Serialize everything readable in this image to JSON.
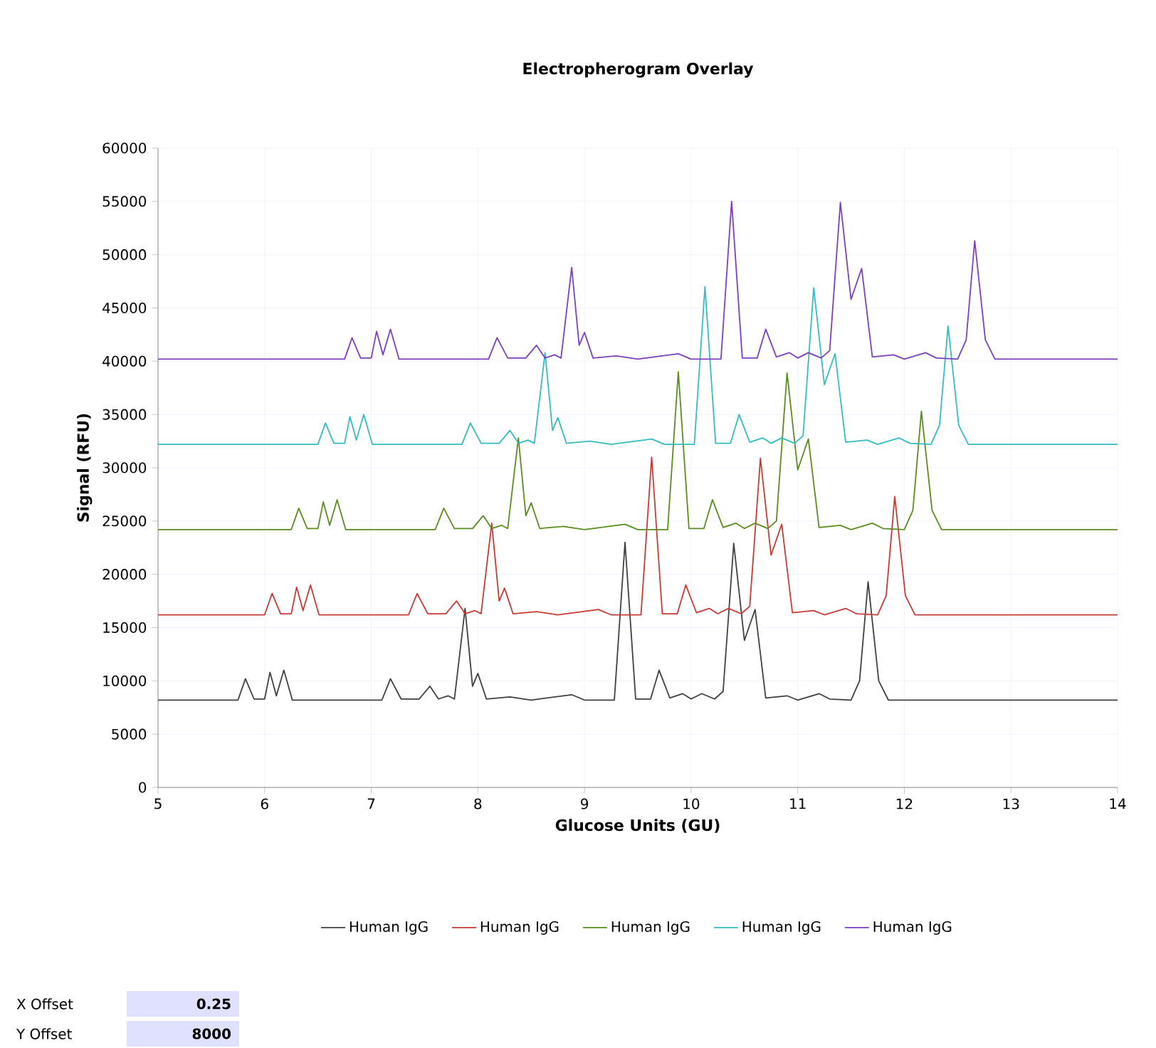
{
  "chart_data": {
    "type": "line",
    "title": "Electropherogram Overlay",
    "xlabel": "Glucose Units (GU)",
    "ylabel": "Signal (RFU)",
    "xlim": [
      5,
      14
    ],
    "xticks": [
      5,
      6,
      7,
      8,
      9,
      10,
      11,
      12,
      13,
      14
    ],
    "ylim": [
      0,
      60000
    ],
    "yticks": [
      0,
      5000,
      10000,
      15000,
      20000,
      25000,
      30000,
      35000,
      40000,
      45000,
      50000,
      55000,
      60000
    ],
    "grid": true,
    "legend": "bottom",
    "marker": "none",
    "line_style": "solid",
    "annotations": [
      "X Offset",
      "0.25",
      "Y Offset",
      "8000"
    ],
    "series": [
      {
        "name": "Human IgG",
        "color": "#404040",
        "x": [
          5.0,
          5.5,
          5.75,
          5.82,
          5.9,
          6.0,
          6.05,
          6.11,
          6.18,
          6.26,
          6.8,
          7.1,
          7.18,
          7.28,
          7.45,
          7.55,
          7.63,
          7.72,
          7.78,
          7.88,
          7.95,
          8.0,
          8.08,
          8.3,
          8.5,
          8.88,
          9.0,
          9.28,
          9.38,
          9.48,
          9.62,
          9.7,
          9.8,
          9.92,
          10.0,
          10.1,
          10.22,
          10.3,
          10.4,
          10.5,
          10.6,
          10.7,
          10.9,
          11.0,
          11.2,
          11.3,
          11.5,
          11.58,
          11.66,
          11.76,
          11.85,
          14.0
        ],
        "values": [
          8200,
          8200,
          8200,
          10200,
          8300,
          8300,
          10800,
          8600,
          11000,
          8200,
          8200,
          8200,
          10200,
          8300,
          8300,
          9500,
          8300,
          8600,
          8300,
          16800,
          9500,
          10700,
          8300,
          8500,
          8200,
          8700,
          8200,
          8200,
          23000,
          8300,
          8300,
          11000,
          8400,
          8800,
          8300,
          8800,
          8300,
          9000,
          22900,
          13800,
          16700,
          8400,
          8600,
          8200,
          8800,
          8300,
          8200,
          10000,
          19300,
          10000,
          8200,
          8200
        ]
      },
      {
        "name": "Human IgG",
        "color": "#c83a32",
        "x": [
          5.0,
          5.75,
          6.0,
          6.07,
          6.15,
          6.25,
          6.3,
          6.36,
          6.43,
          6.51,
          7.05,
          7.35,
          7.43,
          7.53,
          7.7,
          7.8,
          7.88,
          7.97,
          8.03,
          8.13,
          8.2,
          8.25,
          8.33,
          8.55,
          8.75,
          9.13,
          9.25,
          9.53,
          9.63,
          9.73,
          9.87,
          9.95,
          10.05,
          10.17,
          10.25,
          10.35,
          10.47,
          10.55,
          10.65,
          10.75,
          10.85,
          10.95,
          11.15,
          11.25,
          11.45,
          11.55,
          11.75,
          11.83,
          11.91,
          12.01,
          12.1,
          14.0
        ],
        "values": [
          16200,
          16200,
          16200,
          18200,
          16300,
          16300,
          18800,
          16600,
          19000,
          16200,
          16200,
          16200,
          18200,
          16300,
          16300,
          17500,
          16300,
          16600,
          16300,
          24800,
          17500,
          18700,
          16300,
          16500,
          16200,
          16700,
          16200,
          16200,
          31000,
          16300,
          16300,
          19000,
          16400,
          16800,
          16300,
          16800,
          16300,
          17000,
          30900,
          21800,
          24700,
          16400,
          16600,
          16200,
          16800,
          16300,
          16200,
          18000,
          27300,
          18000,
          16200,
          16200
        ]
      },
      {
        "name": "Human IgG",
        "color": "#5b8c1f",
        "x": [
          5.0,
          6.0,
          6.25,
          6.32,
          6.4,
          6.5,
          6.55,
          6.61,
          6.68,
          6.76,
          7.3,
          7.6,
          7.68,
          7.78,
          7.95,
          8.05,
          8.13,
          8.22,
          8.28,
          8.38,
          8.45,
          8.5,
          8.58,
          8.8,
          9.0,
          9.38,
          9.5,
          9.78,
          9.88,
          9.98,
          10.12,
          10.2,
          10.3,
          10.42,
          10.5,
          10.6,
          10.72,
          10.8,
          10.9,
          11.0,
          11.1,
          11.2,
          11.4,
          11.5,
          11.7,
          11.8,
          12.0,
          12.08,
          12.16,
          12.26,
          12.35,
          14.0
        ],
        "values": [
          24200,
          24200,
          24200,
          26200,
          24300,
          24300,
          26800,
          24600,
          27000,
          24200,
          24200,
          24200,
          26200,
          24300,
          24300,
          25500,
          24300,
          24600,
          24300,
          32800,
          25500,
          26700,
          24300,
          24500,
          24200,
          24700,
          24200,
          24200,
          39000,
          24300,
          24300,
          27000,
          24400,
          24800,
          24300,
          24800,
          24300,
          25000,
          38900,
          29800,
          32700,
          24400,
          24600,
          24200,
          24800,
          24300,
          24200,
          26000,
          35300,
          26000,
          24200,
          24200
        ]
      },
      {
        "name": "Human IgG",
        "color": "#33bcc4",
        "x": [
          5.0,
          6.25,
          6.5,
          6.57,
          6.65,
          6.75,
          6.8,
          6.86,
          6.93,
          7.01,
          7.55,
          7.85,
          7.93,
          8.03,
          8.2,
          8.3,
          8.38,
          8.47,
          8.53,
          8.63,
          8.7,
          8.75,
          8.83,
          9.05,
          9.25,
          9.63,
          9.75,
          10.03,
          10.13,
          10.23,
          10.37,
          10.45,
          10.55,
          10.67,
          10.75,
          10.85,
          10.97,
          11.05,
          11.15,
          11.25,
          11.35,
          11.45,
          11.65,
          11.75,
          11.95,
          12.05,
          12.25,
          12.33,
          12.41,
          12.51,
          12.6,
          14.0
        ],
        "values": [
          32200,
          32200,
          32200,
          34200,
          32300,
          32300,
          34800,
          32600,
          35000,
          32200,
          32200,
          32200,
          34200,
          32300,
          32300,
          33500,
          32300,
          32600,
          32300,
          40800,
          33500,
          34700,
          32300,
          32500,
          32200,
          32700,
          32200,
          32200,
          47000,
          32300,
          32300,
          35000,
          32400,
          32800,
          32300,
          32800,
          32300,
          33000,
          46900,
          37800,
          40700,
          32400,
          32600,
          32200,
          32800,
          32300,
          32200,
          34000,
          43300,
          34000,
          32200,
          32200
        ]
      },
      {
        "name": "Human IgG",
        "color": "#7b3fc0",
        "x": [
          5.0,
          6.5,
          6.75,
          6.82,
          6.9,
          7.0,
          7.05,
          7.11,
          7.18,
          7.26,
          7.8,
          8.1,
          8.18,
          8.28,
          8.45,
          8.55,
          8.63,
          8.72,
          8.78,
          8.88,
          8.95,
          9.0,
          9.08,
          9.3,
          9.5,
          9.88,
          10.0,
          10.28,
          10.38,
          10.48,
          10.62,
          10.7,
          10.8,
          10.92,
          11.0,
          11.1,
          11.22,
          11.3,
          11.4,
          11.5,
          11.6,
          11.7,
          11.9,
          12.0,
          12.2,
          12.3,
          12.5,
          12.58,
          12.66,
          12.76,
          12.85,
          14.0
        ],
        "values": [
          40200,
          40200,
          40200,
          42200,
          40300,
          40300,
          42800,
          40600,
          43000,
          40200,
          40200,
          40200,
          42200,
          40300,
          40300,
          41500,
          40300,
          40600,
          40300,
          48800,
          41500,
          42700,
          40300,
          40500,
          40200,
          40700,
          40200,
          40200,
          55000,
          40300,
          40300,
          43000,
          40400,
          40800,
          40300,
          40800,
          40300,
          41000,
          54900,
          45800,
          48700,
          40400,
          40600,
          40200,
          40800,
          40300,
          40200,
          42000,
          51300,
          42000,
          40200,
          40200
        ]
      }
    ]
  }
}
